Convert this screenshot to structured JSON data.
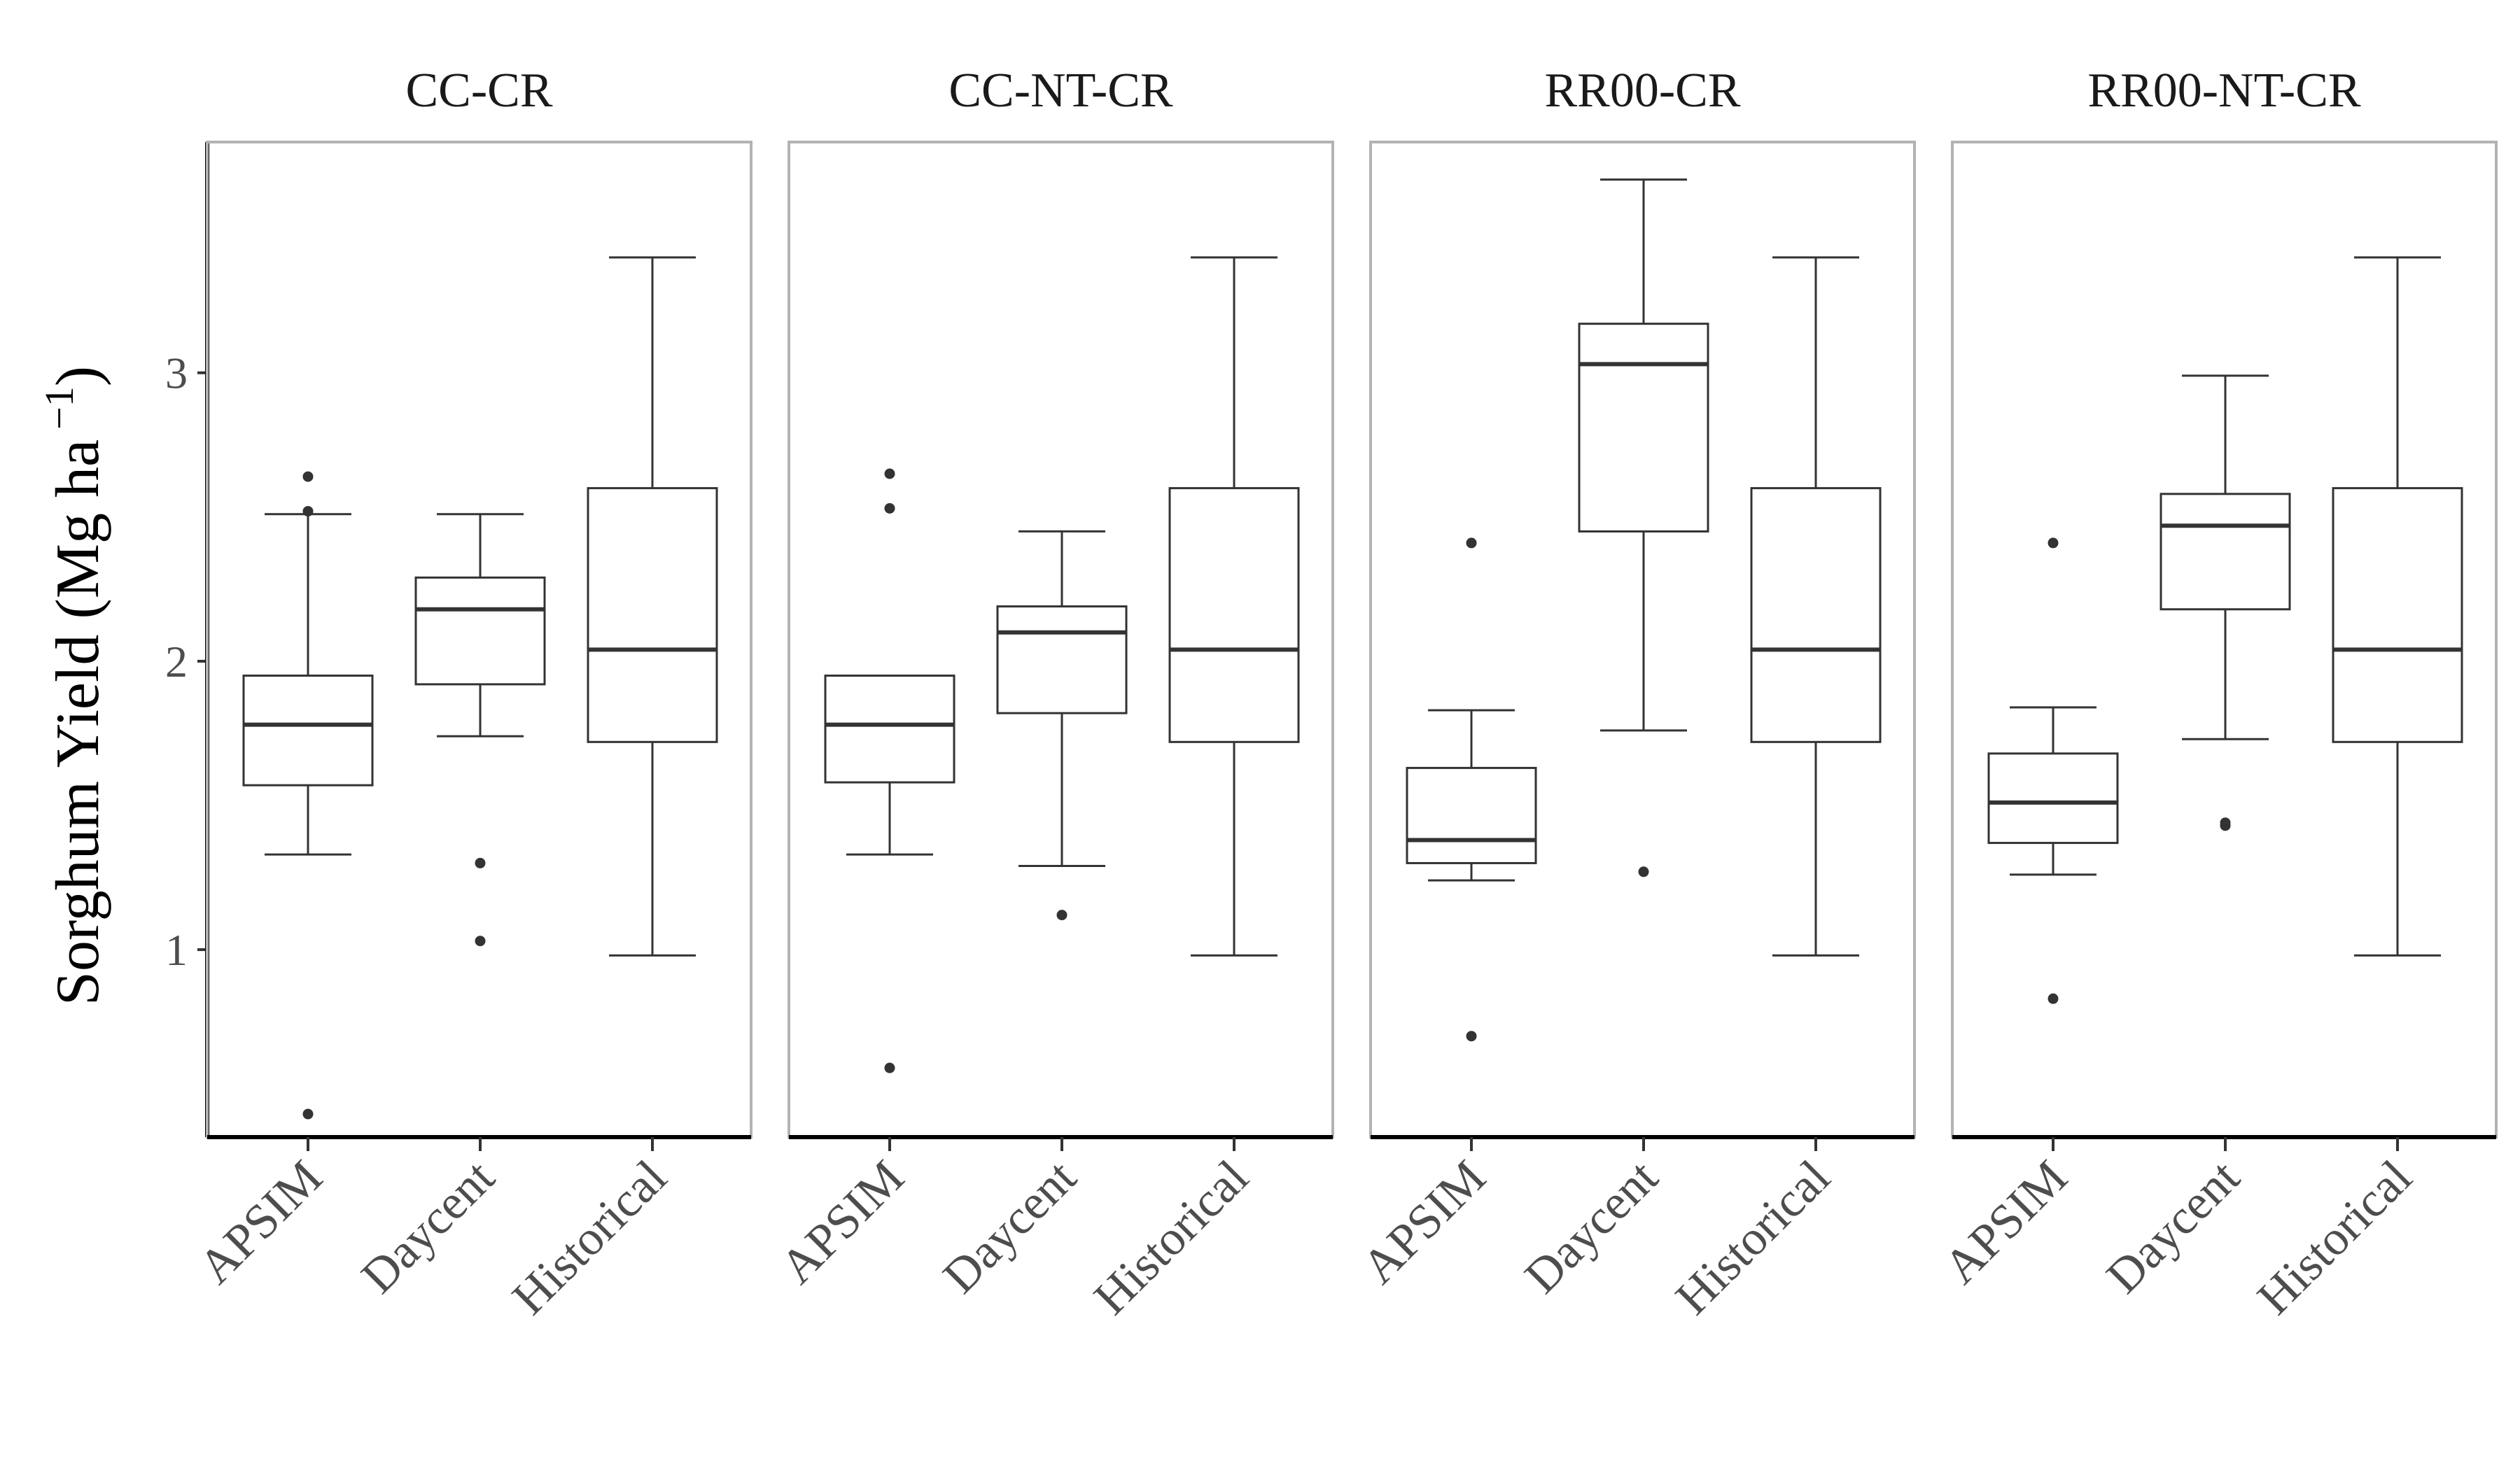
{
  "chart_data": {
    "type": "box",
    "ylabel": "Sorghum Yield (Mg ha",
    "ylabel_superscript": "−1",
    "ylabel_close": ")",
    "ylim": [
      0.35,
      3.8
    ],
    "yticks": [
      1,
      2,
      3
    ],
    "categories": [
      "APSIM",
      "Daycent",
      "Historical"
    ],
    "grid": false,
    "facets": [
      {
        "title": "CC-CR",
        "boxes": [
          {
            "category": "APSIM",
            "lower_whisker": 1.33,
            "q1": 1.57,
            "median": 1.78,
            "q3": 1.95,
            "upper_whisker": 2.51,
            "outliers": [
              0.43,
              2.52,
              2.64
            ]
          },
          {
            "category": "Daycent",
            "lower_whisker": 1.74,
            "q1": 1.92,
            "median": 2.18,
            "q3": 2.29,
            "upper_whisker": 2.51,
            "outliers": [
              1.03,
              1.3
            ]
          },
          {
            "category": "Historical",
            "lower_whisker": 0.98,
            "q1": 1.72,
            "median": 2.04,
            "q3": 2.6,
            "upper_whisker": 3.4,
            "outliers": []
          }
        ]
      },
      {
        "title": "CC-NT-CR",
        "boxes": [
          {
            "category": "APSIM",
            "lower_whisker": 1.33,
            "q1": 1.58,
            "median": 1.78,
            "q3": 1.95,
            "upper_whisker": 1.95,
            "outliers": [
              0.59,
              2.53,
              2.65
            ]
          },
          {
            "category": "Daycent",
            "lower_whisker": 1.29,
            "q1": 1.82,
            "median": 2.1,
            "q3": 2.19,
            "upper_whisker": 2.45,
            "outliers": [
              1.12
            ]
          },
          {
            "category": "Historical",
            "lower_whisker": 0.98,
            "q1": 1.72,
            "median": 2.04,
            "q3": 2.6,
            "upper_whisker": 3.4,
            "outliers": []
          }
        ]
      },
      {
        "title": "RR00-CR",
        "boxes": [
          {
            "category": "APSIM",
            "lower_whisker": 1.24,
            "q1": 1.3,
            "median": 1.38,
            "q3": 1.63,
            "upper_whisker": 1.83,
            "outliers": [
              0.7,
              2.41
            ]
          },
          {
            "category": "Daycent",
            "lower_whisker": 1.76,
            "q1": 2.45,
            "median": 3.03,
            "q3": 3.17,
            "upper_whisker": 3.67,
            "outliers": [
              1.27
            ]
          },
          {
            "category": "Historical",
            "lower_whisker": 0.98,
            "q1": 1.72,
            "median": 2.04,
            "q3": 2.6,
            "upper_whisker": 3.4,
            "outliers": []
          }
        ]
      },
      {
        "title": "RR00-NT-CR",
        "boxes": [
          {
            "category": "APSIM",
            "lower_whisker": 1.26,
            "q1": 1.37,
            "median": 1.51,
            "q3": 1.68,
            "upper_whisker": 1.84,
            "outliers": [
              0.83,
              2.41
            ]
          },
          {
            "category": "Daycent",
            "lower_whisker": 1.73,
            "q1": 2.18,
            "median": 2.47,
            "q3": 2.58,
            "upper_whisker": 2.99,
            "outliers": [
              1.43,
              1.44
            ]
          },
          {
            "category": "Historical",
            "lower_whisker": 0.98,
            "q1": 1.72,
            "median": 2.04,
            "q3": 2.6,
            "upper_whisker": 3.4,
            "outliers": []
          }
        ]
      }
    ]
  }
}
